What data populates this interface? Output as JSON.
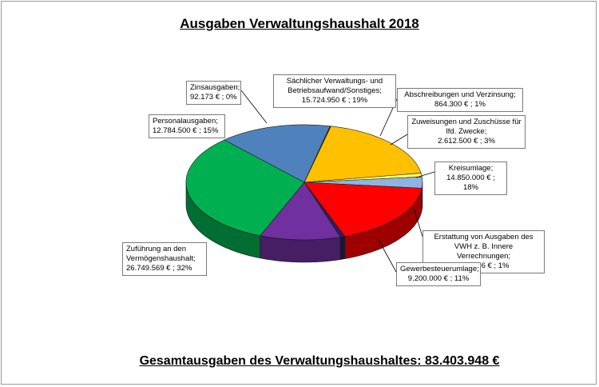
{
  "title": "Ausgaben Verwaltungshaushalt 2018",
  "footer": "Gesamtausgaben des Verwaltungshaushaltes: 83.403.948 €",
  "chart_data": {
    "type": "pie",
    "title": "Ausgaben Verwaltungshaushalt 2018",
    "total": 83403948,
    "slices": [
      {
        "key": "saechlich",
        "label": "Sächlicher Verwaltungs- und Betriebsaufwand/Sonstiges",
        "label_lines": [
          "Sächlicher Verwaltungs- und",
          "Betriebsaufwand/Sonstiges;"
        ],
        "value": 15724950,
        "value_text": "15.724.950 € ; 19%",
        "color": "#ffc000"
      },
      {
        "key": "abschreibungen",
        "label": "Abschreibungen und Verzinsung",
        "label_lines": [
          "Abschreibungen und Verzinsung;"
        ],
        "value": 864300,
        "value_text": "864.300 € ; 1%",
        "color": "#ffff66"
      },
      {
        "key": "zuweisungen",
        "label": "Zuweisungen und Zuschüsse für lfd. Zwecke",
        "label_lines": [
          "Zuweisungen und Zuschüsse für",
          "lfd. Zwecke;"
        ],
        "value": 2612500,
        "value_text": "2.612.500 € ; 3%",
        "color": "#8eb4e3"
      },
      {
        "key": "kreisumlage",
        "label": "Kreisumlage",
        "label_lines": [
          "Kreisumlage;"
        ],
        "value": 14850000,
        "value_text": "14.850.000 € ; 18%",
        "color": "#ff0000"
      },
      {
        "key": "erstattung",
        "label": "Erstattung von Ausgaben des VWH z. B. Innere Verrechnungen",
        "label_lines": [
          "Erstattung von Ausgaben des",
          "VWH z. B. Innere Verrechnungen;"
        ],
        "value": 525956,
        "value_text": "525.956 € ; 1%",
        "color": "#2e1f5e"
      },
      {
        "key": "gewerbesteuer",
        "label": "Gewerbesteuerumlage",
        "label_lines": [
          "Gewerbesteuerumlage;"
        ],
        "value": 9200000,
        "value_text": "9.200.000 € ; 11%",
        "color": "#7030a0"
      },
      {
        "key": "zufuehrung",
        "label": "Zuführung an den Vermögenshaushalt",
        "label_lines": [
          "Zuführung an den",
          "Vermögenshaushalt;"
        ],
        "value": 26749569,
        "value_text": "26.749.569 € ; 32%",
        "color": "#00b050"
      },
      {
        "key": "personal",
        "label": "Personalausgaben",
        "label_lines": [
          "Personalausgaben;"
        ],
        "value": 12784500,
        "value_text": "12.784.500 € ; 15%",
        "color": "#4f81bd"
      },
      {
        "key": "zins",
        "label": "Zinsausgaben",
        "label_lines": [
          "Zinsausgaben;"
        ],
        "value": 92173,
        "value_text": "92.173 € ; 0%",
        "color": "#c00000"
      }
    ]
  }
}
